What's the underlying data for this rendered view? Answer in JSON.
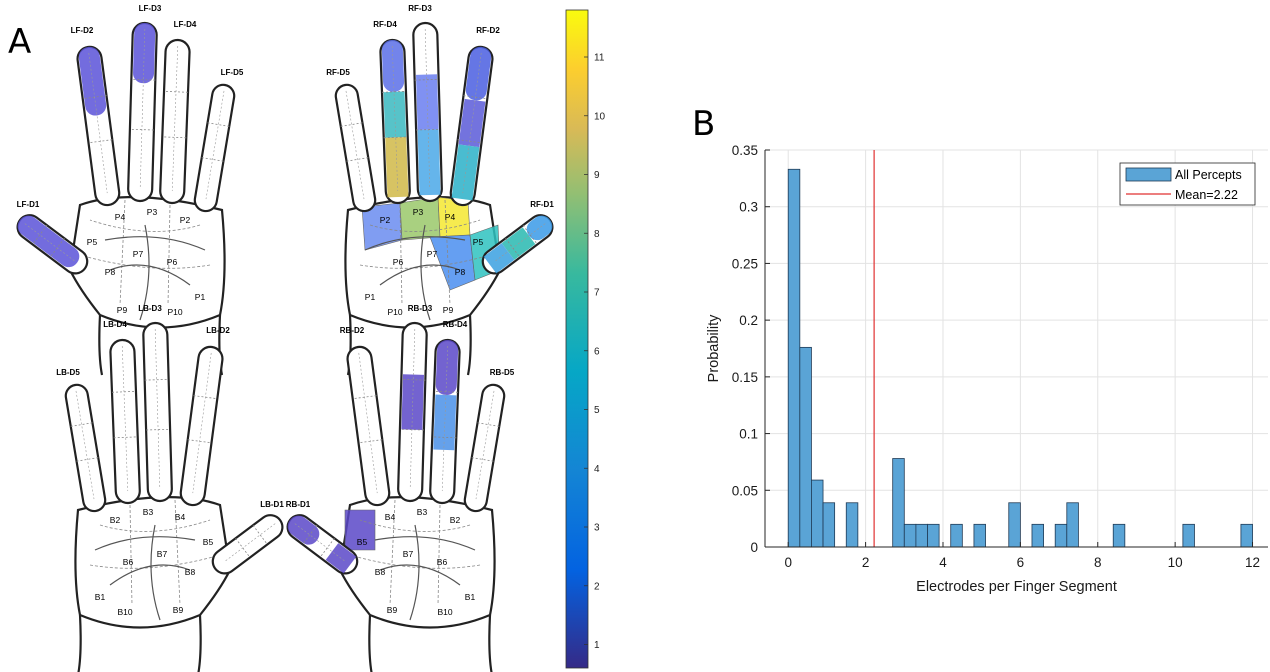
{
  "panels": {
    "a_label": "A",
    "b_label": "B"
  },
  "hands": [
    {
      "id": "LF",
      "finger_labels": [
        "LF-D1",
        "LF-D2",
        "LF-D3",
        "LF-D4",
        "LF-D5"
      ],
      "palm_labels": [
        "P1",
        "P2",
        "P3",
        "P4",
        "P5",
        "P6",
        "P7",
        "P8",
        "P9",
        "P10"
      ]
    },
    {
      "id": "RF",
      "finger_labels": [
        "RF-D1",
        "RF-D2",
        "RF-D3",
        "RF-D4",
        "RF-D5"
      ],
      "palm_labels": [
        "P1",
        "P2",
        "P3",
        "P4",
        "P5",
        "P6",
        "P7",
        "P8",
        "P9",
        "P10"
      ]
    },
    {
      "id": "LB",
      "finger_labels": [
        "LB-D1",
        "LB-D2",
        "LB-D3",
        "LB-D4",
        "LB-D5"
      ],
      "palm_labels": [
        "B1",
        "B2",
        "B3",
        "B4",
        "B5",
        "B6",
        "B7",
        "B8",
        "B9",
        "B10"
      ]
    },
    {
      "id": "RB",
      "finger_labels": [
        "RB-D1",
        "RB-D2",
        "RB-D3",
        "RB-D4",
        "RB-D5"
      ],
      "palm_labels": [
        "B1",
        "B2",
        "B3",
        "B4",
        "B5",
        "B6",
        "B7",
        "B8",
        "B9",
        "B10"
      ]
    }
  ],
  "colorbar": {
    "ticks": [
      "1",
      "2",
      "3",
      "4",
      "5",
      "6",
      "7",
      "8",
      "9",
      "10",
      "11"
    ],
    "min": 0.6,
    "max": 11.8,
    "colormap": "parula"
  },
  "chart_data": {
    "type": "bar",
    "xlabel": "Electrodes per Finger Segment",
    "ylabel": "Probability",
    "xlim": [
      -0.6,
      12.4
    ],
    "ylim": [
      0,
      0.35
    ],
    "xticks": [
      "0",
      "2",
      "4",
      "6",
      "8",
      "10",
      "12"
    ],
    "yticks": [
      "0",
      "0.05",
      "0.1",
      "0.15",
      "0.2",
      "0.25",
      "0.3",
      "0.35"
    ],
    "grid": true,
    "bin_width": 0.3,
    "bins": [
      {
        "x": 0.0,
        "y": 0.333
      },
      {
        "x": 0.3,
        "y": 0.176
      },
      {
        "x": 0.6,
        "y": 0.059
      },
      {
        "x": 0.9,
        "y": 0.039
      },
      {
        "x": 1.5,
        "y": 0.039
      },
      {
        "x": 2.7,
        "y": 0.078
      },
      {
        "x": 3.0,
        "y": 0.02
      },
      {
        "x": 3.3,
        "y": 0.02
      },
      {
        "x": 3.6,
        "y": 0.02
      },
      {
        "x": 4.2,
        "y": 0.02
      },
      {
        "x": 4.8,
        "y": 0.02
      },
      {
        "x": 5.7,
        "y": 0.039
      },
      {
        "x": 6.3,
        "y": 0.02
      },
      {
        "x": 6.9,
        "y": 0.02
      },
      {
        "x": 7.2,
        "y": 0.039
      },
      {
        "x": 8.4,
        "y": 0.02
      },
      {
        "x": 10.2,
        "y": 0.02
      },
      {
        "x": 11.7,
        "y": 0.02
      }
    ],
    "mean_line": 2.22,
    "legend": [
      {
        "name": "All Percepts",
        "color": "#5aa4d6"
      },
      {
        "name": "Mean=2.22",
        "color": "#e03030"
      }
    ],
    "legend_position": "top-right",
    "colors": {
      "bar_fill": "#5aa4d6",
      "bar_edge": "#1f3a55",
      "mean": "#e03030"
    }
  }
}
